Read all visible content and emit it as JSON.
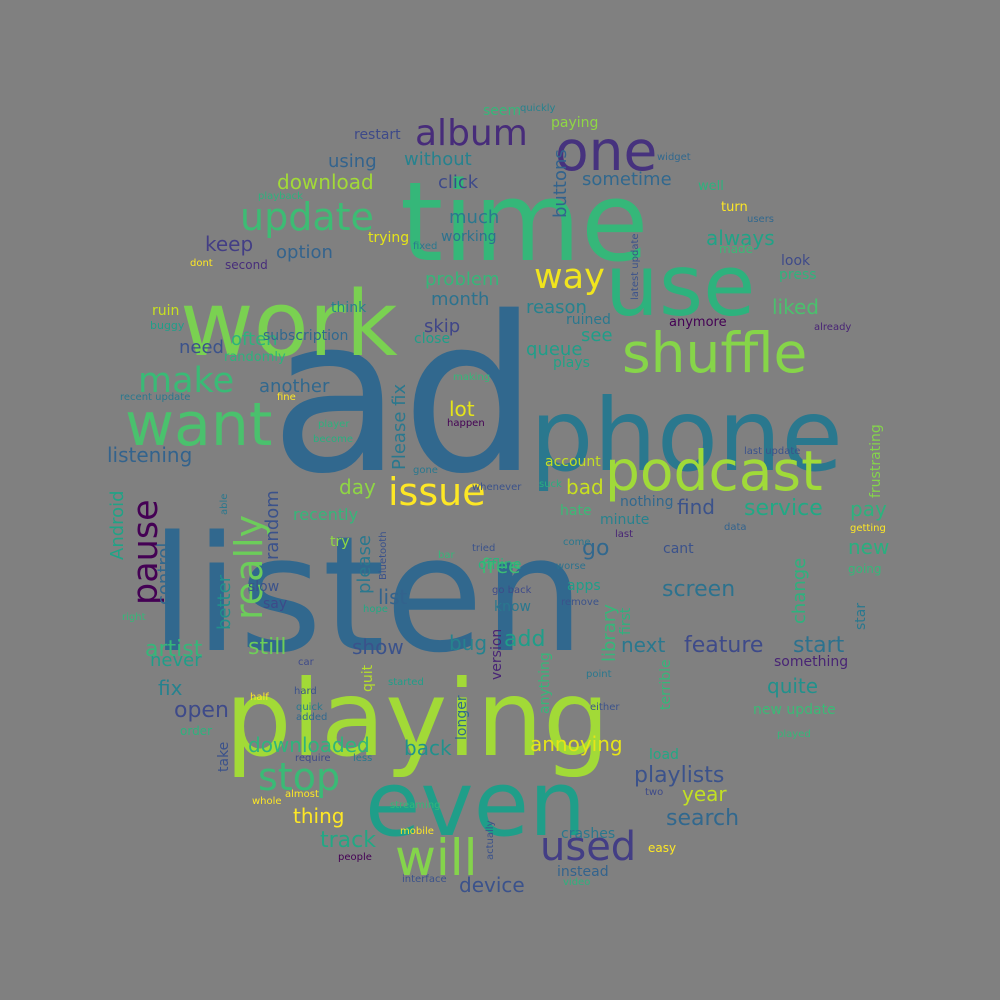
{
  "background": "#808080",
  "palette": {
    "dark_purple": "#472d7b",
    "deep_blue": "#3b528b",
    "steel_blue": "#31688e",
    "teal_blue": "#26828e",
    "teal": "#1f9e89",
    "green": "#35b779",
    "lime": "#6ece58",
    "yellow_green": "#b5de2b",
    "yellow": "#fde725"
  },
  "words": [
    {
      "text": "ad",
      "color": "#31688e",
      "rotate": false
    },
    {
      "text": "listen",
      "color": "#31688e",
      "rotate": false
    },
    {
      "text": "playing",
      "color": "#a2da37",
      "rotate": false
    },
    {
      "text": "time",
      "color": "#35b779",
      "rotate": false
    },
    {
      "text": "phone",
      "color": "#2a788e",
      "rotate": false
    },
    {
      "text": "work",
      "color": "#7ad151",
      "rotate": false
    },
    {
      "text": "use",
      "color": "#2db27d",
      "rotate": false
    },
    {
      "text": "even",
      "color": "#1f9e89",
      "rotate": false
    },
    {
      "text": "podcast",
      "color": "#a0da39",
      "rotate": false
    },
    {
      "text": "want",
      "color": "#4ac16d",
      "rotate": false
    },
    {
      "text": "shuffle",
      "color": "#86d549",
      "rotate": false
    },
    {
      "text": "will",
      "color": "#84d44b",
      "rotate": false
    },
    {
      "text": "one",
      "color": "#46327e",
      "rotate": false
    },
    {
      "text": "issue",
      "color": "#fde725",
      "rotate": false
    },
    {
      "text": "update",
      "color": "#3dbc74",
      "rotate": false
    },
    {
      "text": "album",
      "color": "#472c7a",
      "rotate": false
    },
    {
      "text": "make",
      "color": "#3aba76",
      "rotate": false
    },
    {
      "text": "stop",
      "color": "#3aba76",
      "rotate": false
    },
    {
      "text": "used",
      "color": "#433e85",
      "rotate": false
    },
    {
      "text": "way",
      "color": "#f1e51d",
      "rotate": false
    },
    {
      "text": "really",
      "color": "#6ccd5a",
      "rotate": true
    },
    {
      "text": "pause",
      "color": "#440154",
      "rotate": true
    },
    {
      "text": "playlists",
      "color": "#3b528b",
      "rotate": false
    },
    {
      "text": "downloaded",
      "color": "#2fb47c",
      "rotate": false
    },
    {
      "text": "screen",
      "color": "#2c728e",
      "rotate": false
    },
    {
      "text": "feature",
      "color": "#3e4a89",
      "rotate": false
    },
    {
      "text": "service",
      "color": "#22a884",
      "rotate": false
    },
    {
      "text": "listening",
      "color": "#33638d",
      "rotate": false
    },
    {
      "text": "artist",
      "color": "#35b779",
      "rotate": false
    },
    {
      "text": "still",
      "color": "#6ece58",
      "rotate": false
    },
    {
      "text": "annoying",
      "color": "#e5e419",
      "rotate": false
    },
    {
      "text": "track",
      "color": "#22a884",
      "rotate": false
    },
    {
      "text": "thing",
      "color": "#fde725",
      "rotate": false
    },
    {
      "text": "search",
      "color": "#31688e",
      "rotate": false
    },
    {
      "text": "device",
      "color": "#3b528b",
      "rotate": false
    },
    {
      "text": "year",
      "color": "#c2df23",
      "rotate": false
    },
    {
      "text": "quite",
      "color": "#21918c",
      "rotate": false
    },
    {
      "text": "start",
      "color": "#2c728e",
      "rotate": false
    },
    {
      "text": "next",
      "color": "#2a788e",
      "rotate": false
    },
    {
      "text": "show",
      "color": "#3b528b",
      "rotate": false
    },
    {
      "text": "bug",
      "color": "#26828e",
      "rotate": false
    },
    {
      "text": "add",
      "color": "#1f9e89",
      "rotate": false
    },
    {
      "text": "back",
      "color": "#21918c",
      "rotate": false
    },
    {
      "text": "never",
      "color": "#1f9e89",
      "rotate": false
    },
    {
      "text": "fix",
      "color": "#26828e",
      "rotate": false
    },
    {
      "text": "open",
      "color": "#3e4a89",
      "rotate": false
    },
    {
      "text": "list",
      "color": "#33638d",
      "rotate": false
    },
    {
      "text": "free",
      "color": "#3dbc74",
      "rotate": false
    },
    {
      "text": "go",
      "color": "#31688e",
      "rotate": false
    },
    {
      "text": "bad",
      "color": "#c8e020",
      "rotate": false
    },
    {
      "text": "day",
      "color": "#8fd744",
      "rotate": false
    },
    {
      "text": "find",
      "color": "#3b528b",
      "rotate": false
    },
    {
      "text": "pay",
      "color": "#2db27d",
      "rotate": false
    },
    {
      "text": "new",
      "color": "#29af7f",
      "rotate": false
    },
    {
      "text": "liked",
      "color": "#4ac16d",
      "rotate": false
    },
    {
      "text": "always",
      "color": "#20a386",
      "rotate": false
    },
    {
      "text": "see",
      "color": "#1f9e89",
      "rotate": false
    },
    {
      "text": "queue",
      "color": "#1f9e89",
      "rotate": false
    },
    {
      "text": "reason",
      "color": "#26828e",
      "rotate": false
    },
    {
      "text": "lot",
      "color": "#e5e419",
      "rotate": false
    },
    {
      "text": "skip",
      "color": "#404688",
      "rotate": false
    },
    {
      "text": "month",
      "color": "#2c728e",
      "rotate": false
    },
    {
      "text": "problem",
      "color": "#35b779",
      "rotate": false
    },
    {
      "text": "need",
      "color": "#3b528b",
      "rotate": false
    },
    {
      "text": "often",
      "color": "#2db27d",
      "rotate": false
    },
    {
      "text": "another",
      "color": "#31688e",
      "rotate": false
    },
    {
      "text": "keep",
      "color": "#433e85",
      "rotate": false
    },
    {
      "text": "option",
      "color": "#33638d",
      "rotate": false
    },
    {
      "text": "much",
      "color": "#2a788e",
      "rotate": false
    },
    {
      "text": "click",
      "color": "#3e4a89",
      "rotate": false
    },
    {
      "text": "download",
      "color": "#a2da37",
      "rotate": false
    },
    {
      "text": "using",
      "color": "#33638d",
      "rotate": false
    },
    {
      "text": "without",
      "color": "#26828e",
      "rotate": false
    },
    {
      "text": "sometime",
      "color": "#31688e",
      "rotate": false
    },
    {
      "text": "buttons",
      "color": "#33638d",
      "rotate": true
    },
    {
      "text": "Please fix",
      "color": "#2a788e",
      "rotate": true
    },
    {
      "text": "library",
      "color": "#35b779",
      "rotate": true
    },
    {
      "text": "change",
      "color": "#2db27d",
      "rotate": true
    },
    {
      "text": "control",
      "color": "#31688e",
      "rotate": true
    },
    {
      "text": "Android",
      "color": "#20a386",
      "rotate": true
    },
    {
      "text": "better",
      "color": "#21918c",
      "rotate": true
    },
    {
      "text": "random",
      "color": "#3b528b",
      "rotate": true
    },
    {
      "text": "please",
      "color": "#2a788e",
      "rotate": true
    },
    {
      "text": "recently",
      "color": "#35b779",
      "rotate": false
    },
    {
      "text": "account",
      "color": "#c2df23",
      "rotate": false
    },
    {
      "text": "hate",
      "color": "#3aba76",
      "rotate": false
    },
    {
      "text": "minute",
      "color": "#26828e",
      "rotate": false
    },
    {
      "text": "crashes",
      "color": "#2a788e",
      "rotate": false
    },
    {
      "text": "instead",
      "color": "#33638d",
      "rotate": false
    },
    {
      "text": "load",
      "color": "#22a884",
      "rotate": false
    },
    {
      "text": "new update",
      "color": "#3aba76",
      "rotate": false
    },
    {
      "text": "something",
      "color": "#482475",
      "rotate": false
    },
    {
      "text": "press",
      "color": "#2fb47c",
      "rotate": false
    },
    {
      "text": "look",
      "color": "#3e4a89",
      "rotate": false
    },
    {
      "text": "anymore",
      "color": "#440154",
      "rotate": false
    },
    {
      "text": "turn",
      "color": "#fde725",
      "rotate": false
    },
    {
      "text": "well",
      "color": "#2db27d",
      "rotate": false
    },
    {
      "text": "made",
      "color": "#3aba76",
      "rotate": false
    },
    {
      "text": "users",
      "color": "#31688e",
      "rotate": false
    },
    {
      "text": "frustrating",
      "color": "#84d44b",
      "rotate": true
    },
    {
      "text": "star",
      "color": "#2a788e",
      "rotate": true
    },
    {
      "text": "going",
      "color": "#35b779",
      "rotate": false
    },
    {
      "text": "getting",
      "color": "#fde725",
      "rotate": false
    },
    {
      "text": "cant",
      "color": "#3b528b",
      "rotate": false
    },
    {
      "text": "nothing",
      "color": "#31688e",
      "rotate": false
    },
    {
      "text": "last",
      "color": "#482475",
      "rotate": false
    },
    {
      "text": "data",
      "color": "#33638d",
      "rotate": false
    },
    {
      "text": "last update",
      "color": "#3b528b",
      "rotate": false
    },
    {
      "text": "already",
      "color": "#482475",
      "rotate": false
    },
    {
      "text": "latest update",
      "color": "#3b528b",
      "rotate": true
    },
    {
      "text": "widget",
      "color": "#31688e",
      "rotate": false
    },
    {
      "text": "quickly",
      "color": "#26828e",
      "rotate": false
    },
    {
      "text": "paying",
      "color": "#8fd744",
      "rotate": false
    },
    {
      "text": "seem",
      "color": "#35b779",
      "rotate": false
    },
    {
      "text": "restart",
      "color": "#3e4a89",
      "rotate": false
    },
    {
      "text": "working",
      "color": "#2c728e",
      "rotate": false
    },
    {
      "text": "trying",
      "color": "#e5e419",
      "rotate": false
    },
    {
      "text": "second",
      "color": "#472d7b",
      "rotate": false
    },
    {
      "text": "dont",
      "color": "#fde725",
      "rotate": false
    },
    {
      "text": "ruin",
      "color": "#c8e020",
      "rotate": false
    },
    {
      "text": "buggy",
      "color": "#1f9e89",
      "rotate": false
    },
    {
      "text": "randomly",
      "color": "#2db27d",
      "rotate": false
    },
    {
      "text": "think",
      "color": "#26828e",
      "rotate": false
    },
    {
      "text": "subscription",
      "color": "#31688e",
      "rotate": false
    },
    {
      "text": "ruined",
      "color": "#2a788e",
      "rotate": false
    },
    {
      "text": "close",
      "color": "#1f9e89",
      "rotate": false
    },
    {
      "text": "plays",
      "color": "#20a386",
      "rotate": false
    },
    {
      "text": "making",
      "color": "#35b779",
      "rotate": false
    },
    {
      "text": "recent update",
      "color": "#2a788e",
      "rotate": false
    },
    {
      "text": "fine",
      "color": "#fde725",
      "rotate": false
    },
    {
      "text": "player",
      "color": "#2db27d",
      "rotate": false
    },
    {
      "text": "become",
      "color": "#29af7f",
      "rotate": false
    },
    {
      "text": "happen",
      "color": "#440154",
      "rotate": false
    },
    {
      "text": "gone",
      "color": "#2a788e",
      "rotate": false
    },
    {
      "text": "whenever",
      "color": "#3b528b",
      "rotate": false
    },
    {
      "text": "suck",
      "color": "#29af7f",
      "rotate": false
    },
    {
      "text": "able",
      "color": "#2a788e",
      "rotate": true
    },
    {
      "text": "try",
      "color": "#8fd744",
      "rotate": false
    },
    {
      "text": "bar",
      "color": "#35b779",
      "rotate": false
    },
    {
      "text": "tried",
      "color": "#3b528b",
      "rotate": false
    },
    {
      "text": "offline",
      "color": "#2db27d",
      "rotate": false
    },
    {
      "text": "go back",
      "color": "#3e4a89",
      "rotate": false
    },
    {
      "text": "know",
      "color": "#2a788e",
      "rotate": false
    },
    {
      "text": "worse",
      "color": "#2c728e",
      "rotate": false
    },
    {
      "text": "remove",
      "color": "#3b528b",
      "rotate": false
    },
    {
      "text": "apps",
      "color": "#1f9e89",
      "rotate": false
    },
    {
      "text": "first",
      "color": "#2db27d",
      "rotate": true
    },
    {
      "text": "slow",
      "color": "#3b528b",
      "rotate": false
    },
    {
      "text": "say",
      "color": "#3e4a89",
      "rotate": false
    },
    {
      "text": "hope",
      "color": "#22a884",
      "rotate": false
    },
    {
      "text": "right",
      "color": "#35b779",
      "rotate": false
    },
    {
      "text": "car",
      "color": "#3e4a89",
      "rotate": false
    },
    {
      "text": "half",
      "color": "#fde725",
      "rotate": false
    },
    {
      "text": "hard",
      "color": "#3b528b",
      "rotate": false
    },
    {
      "text": "quick",
      "color": "#2a788e",
      "rotate": false
    },
    {
      "text": "added",
      "color": "#31688e",
      "rotate": false
    },
    {
      "text": "quit",
      "color": "#b5de2b",
      "rotate": true
    },
    {
      "text": "started",
      "color": "#1f9e89",
      "rotate": false
    },
    {
      "text": "version",
      "color": "#482475",
      "rotate": true
    },
    {
      "text": "anything",
      "color": "#35b779",
      "rotate": true
    },
    {
      "text": "point",
      "color": "#2a788e",
      "rotate": false
    },
    {
      "text": "either",
      "color": "#3b528b",
      "rotate": false
    },
    {
      "text": "terrible",
      "color": "#35b779",
      "rotate": true
    },
    {
      "text": "longer",
      "color": "#31688e",
      "rotate": true
    },
    {
      "text": "order",
      "color": "#2db27d",
      "rotate": false
    },
    {
      "text": "take",
      "color": "#3b528b",
      "rotate": true
    },
    {
      "text": "require",
      "color": "#3e4a89",
      "rotate": false
    },
    {
      "text": "less",
      "color": "#2a788e",
      "rotate": false
    },
    {
      "text": "whole",
      "color": "#fde725",
      "rotate": false
    },
    {
      "text": "almost",
      "color": "#fde725",
      "rotate": false
    },
    {
      "text": "streaming",
      "color": "#35b779",
      "rotate": false
    },
    {
      "text": "two",
      "color": "#3e4a89",
      "rotate": false
    },
    {
      "text": "played",
      "color": "#35b779",
      "rotate": false
    },
    {
      "text": "mobile",
      "color": "#fde725",
      "rotate": false
    },
    {
      "text": "people",
      "color": "#440154",
      "rotate": false
    },
    {
      "text": "actually",
      "color": "#3b528b",
      "rotate": true
    },
    {
      "text": "easy",
      "color": "#fde725",
      "rotate": false
    },
    {
      "text": "interface",
      "color": "#3b528b",
      "rotate": false
    },
    {
      "text": "video",
      "color": "#2db27d",
      "rotate": false
    },
    {
      "text": "Bluetooth",
      "color": "#3b528b",
      "rotate": true
    },
    {
      "text": "playback",
      "color": "#2db27d",
      "rotate": false
    },
    {
      "text": "fixed",
      "color": "#2a788e",
      "rotate": false
    },
    {
      "text": "come",
      "color": "#2a788e",
      "rotate": false
    }
  ]
}
